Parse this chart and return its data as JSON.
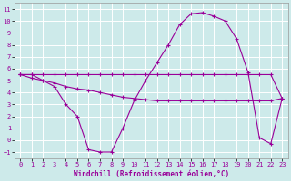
{
  "xlabel": "Windchill (Refroidissement éolien,°C)",
  "background_color": "#cdeaea",
  "grid_color": "#b8d8d8",
  "line_color": "#990099",
  "xlim": [
    -0.5,
    23.5
  ],
  "ylim": [
    -1.5,
    11.5
  ],
  "xticks": [
    0,
    1,
    2,
    3,
    4,
    5,
    6,
    7,
    8,
    9,
    10,
    11,
    12,
    13,
    14,
    15,
    16,
    17,
    18,
    19,
    20,
    21,
    22,
    23
  ],
  "yticks": [
    -1,
    0,
    1,
    2,
    3,
    4,
    5,
    6,
    7,
    8,
    9,
    10,
    11
  ],
  "curve_hump_x": [
    0,
    1,
    2,
    3,
    4,
    5,
    6,
    7,
    8,
    9,
    10,
    11,
    12,
    13,
    14,
    15,
    16,
    17,
    18,
    19,
    20,
    21,
    22,
    23
  ],
  "curve_hump_y": [
    5.5,
    5.5,
    5.0,
    4.5,
    3.0,
    2.0,
    -0.8,
    -1.0,
    -1.0,
    1.0,
    3.3,
    5.0,
    6.5,
    8.0,
    9.7,
    10.6,
    10.7,
    10.4,
    10.0,
    8.5,
    5.7,
    0.2,
    -0.3,
    3.5
  ],
  "curve_flat_x": [
    0,
    1,
    2,
    3,
    4,
    5,
    6,
    7,
    8,
    9,
    10,
    11,
    12,
    13,
    14,
    15,
    16,
    17,
    18,
    19,
    20,
    21,
    22,
    23
  ],
  "curve_flat_y": [
    5.5,
    5.5,
    5.5,
    5.5,
    5.5,
    5.5,
    5.5,
    5.5,
    5.5,
    5.5,
    5.5,
    5.5,
    5.5,
    5.5,
    5.5,
    5.5,
    5.5,
    5.5,
    5.5,
    5.5,
    5.5,
    5.5,
    5.5,
    3.5
  ],
  "curve_diag_x": [
    0,
    1,
    2,
    3,
    4,
    5,
    6,
    7,
    8,
    9,
    10,
    11,
    12,
    13,
    14,
    15,
    16,
    17,
    18,
    19,
    20,
    21,
    22,
    23
  ],
  "curve_diag_y": [
    5.5,
    5.2,
    5.0,
    4.8,
    4.5,
    4.3,
    4.2,
    4.0,
    3.8,
    3.6,
    3.5,
    3.4,
    3.3,
    3.3,
    3.3,
    3.3,
    3.3,
    3.3,
    3.3,
    3.3,
    3.3,
    3.3,
    3.3,
    3.5
  ],
  "tick_fontsize": 5,
  "xlabel_fontsize": 5.5
}
